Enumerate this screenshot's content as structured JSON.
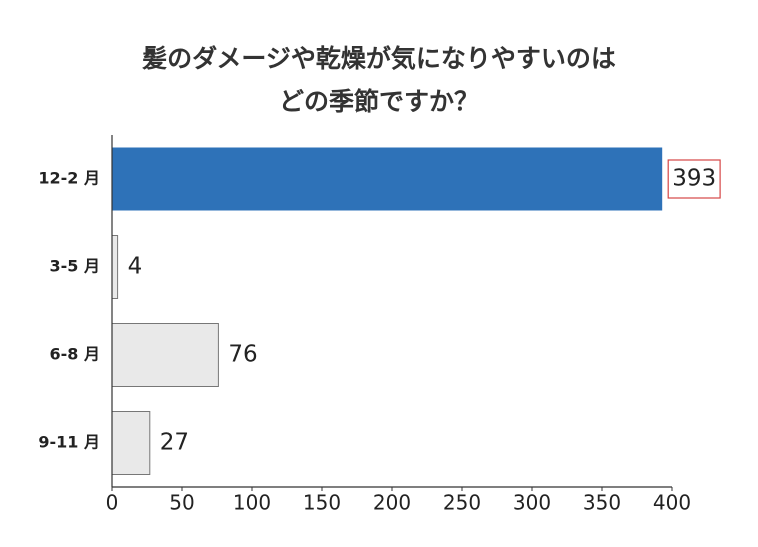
{
  "chart_data": {
    "type": "hbar",
    "title": [
      "髪のダメージや乾燥が気になりやすいのは",
      "どの季節ですか？"
    ],
    "categories": [
      "12-2 月",
      "3-5 月",
      "6-8 月",
      "9-11 月"
    ],
    "values": [
      393,
      4,
      76,
      27
    ],
    "colors": [
      "#2e72b8",
      "#e9e9e9",
      "#e9e9e9",
      "#e9e9e9"
    ],
    "highlight_index": 0,
    "highlight_color": "#d64545",
    "xlim": [
      0,
      400
    ],
    "xticks": [
      0,
      50,
      100,
      150,
      200,
      250,
      300,
      350,
      400
    ]
  }
}
